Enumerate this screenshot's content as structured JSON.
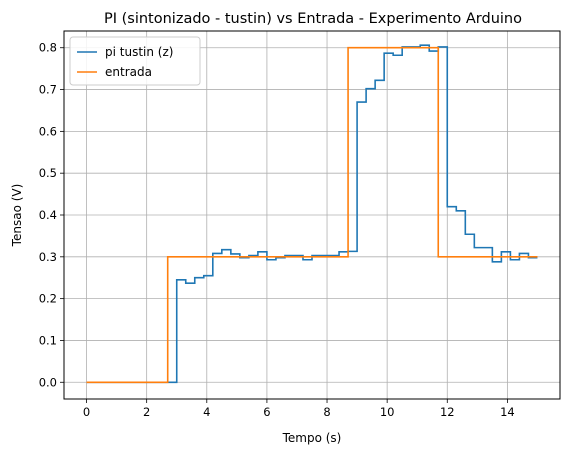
{
  "chart_data": {
    "type": "line",
    "title": "PI (sintonizado - tustin) vs Entrada - Experimento Arduino",
    "xlabel": "Tempo (s)",
    "ylabel": "Tensao (V)",
    "xlim": [
      -0.75,
      15.75
    ],
    "ylim": [
      -0.04,
      0.84
    ],
    "xticks": [
      0,
      2,
      4,
      6,
      8,
      10,
      12,
      14
    ],
    "yticks": [
      0.0,
      0.1,
      0.2,
      0.3,
      0.4,
      0.5,
      0.6,
      0.7,
      0.8
    ],
    "xtick_labels": [
      "0",
      "2",
      "4",
      "6",
      "8",
      "10",
      "12",
      "14"
    ],
    "ytick_labels": [
      "0.0",
      "0.1",
      "0.2",
      "0.3",
      "0.4",
      "0.5",
      "0.6",
      "0.7",
      "0.8"
    ],
    "grid": true,
    "legend_position": "top-left",
    "step": true,
    "series": [
      {
        "name": "pi tustin (z)",
        "color": "#1f77b4",
        "points": [
          [
            0,
            0.0
          ],
          [
            3.0,
            0.0
          ],
          [
            3.0,
            0.245
          ],
          [
            3.3,
            0.245
          ],
          [
            3.3,
            0.237
          ],
          [
            3.6,
            0.237
          ],
          [
            3.6,
            0.25
          ],
          [
            3.9,
            0.25
          ],
          [
            3.9,
            0.255
          ],
          [
            4.2,
            0.255
          ],
          [
            4.2,
            0.308
          ],
          [
            4.5,
            0.308
          ],
          [
            4.5,
            0.317
          ],
          [
            4.8,
            0.317
          ],
          [
            4.8,
            0.307
          ],
          [
            5.1,
            0.307
          ],
          [
            5.1,
            0.298
          ],
          [
            5.4,
            0.298
          ],
          [
            5.4,
            0.303
          ],
          [
            5.7,
            0.303
          ],
          [
            5.7,
            0.312
          ],
          [
            6.0,
            0.312
          ],
          [
            6.0,
            0.293
          ],
          [
            6.3,
            0.293
          ],
          [
            6.3,
            0.298
          ],
          [
            6.6,
            0.298
          ],
          [
            6.6,
            0.303
          ],
          [
            7.2,
            0.303
          ],
          [
            7.2,
            0.293
          ],
          [
            7.5,
            0.293
          ],
          [
            7.5,
            0.303
          ],
          [
            8.4,
            0.303
          ],
          [
            8.4,
            0.312
          ],
          [
            8.7,
            0.312
          ],
          [
            8.7,
            0.313
          ],
          [
            9.0,
            0.313
          ],
          [
            9.0,
            0.67
          ],
          [
            9.3,
            0.67
          ],
          [
            9.3,
            0.702
          ],
          [
            9.6,
            0.702
          ],
          [
            9.6,
            0.722
          ],
          [
            9.9,
            0.722
          ],
          [
            9.9,
            0.787
          ],
          [
            10.2,
            0.787
          ],
          [
            10.2,
            0.782
          ],
          [
            10.5,
            0.782
          ],
          [
            10.5,
            0.802
          ],
          [
            11.1,
            0.802
          ],
          [
            11.1,
            0.806
          ],
          [
            11.4,
            0.806
          ],
          [
            11.4,
            0.792
          ],
          [
            11.7,
            0.792
          ],
          [
            11.7,
            0.802
          ],
          [
            12.0,
            0.802
          ],
          [
            12.0,
            0.42
          ],
          [
            12.3,
            0.42
          ],
          [
            12.3,
            0.41
          ],
          [
            12.6,
            0.41
          ],
          [
            12.6,
            0.354
          ],
          [
            12.9,
            0.354
          ],
          [
            12.9,
            0.322
          ],
          [
            13.5,
            0.322
          ],
          [
            13.5,
            0.288
          ],
          [
            13.8,
            0.288
          ],
          [
            13.8,
            0.312
          ],
          [
            14.1,
            0.312
          ],
          [
            14.1,
            0.293
          ],
          [
            14.4,
            0.293
          ],
          [
            14.4,
            0.308
          ],
          [
            14.7,
            0.308
          ],
          [
            14.7,
            0.298
          ],
          [
            15.0,
            0.298
          ]
        ]
      },
      {
        "name": "entrada",
        "color": "#ff7f0e",
        "points": [
          [
            0,
            0.0
          ],
          [
            2.7,
            0.0
          ],
          [
            2.7,
            0.3
          ],
          [
            8.7,
            0.3
          ],
          [
            8.7,
            0.8
          ],
          [
            11.7,
            0.8
          ],
          [
            11.7,
            0.3
          ],
          [
            15.0,
            0.3
          ]
        ]
      }
    ]
  }
}
